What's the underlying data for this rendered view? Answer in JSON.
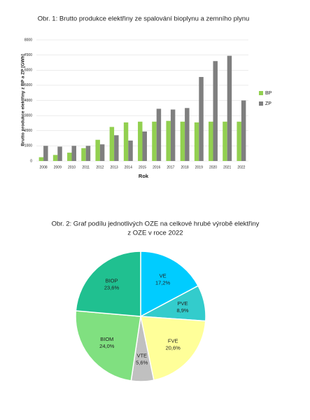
{
  "chart_data": [
    {
      "type": "bar",
      "title": "Obr. 1: Brutto produkce elektřiny ze spalování bioplynu a zemního plynu",
      "y_label": "Brutto produkce elektřiny z BP a ZP [GWh]",
      "x_label": "Rok",
      "categories": [
        "2008",
        "2009",
        "2010",
        "2011",
        "2012",
        "2013",
        "2014",
        "2015",
        "2016",
        "2017",
        "2018",
        "2019",
        "2020",
        "2021",
        "2022"
      ],
      "series": [
        {
          "name": "BP",
          "color": "#92d050",
          "values": [
            250,
            400,
            550,
            850,
            1400,
            2250,
            2550,
            2600,
            2600,
            2650,
            2600,
            2550,
            2600,
            2600,
            2600
          ]
        },
        {
          "name": "ZP",
          "color": "#7f7f7f",
          "values": [
            1000,
            950,
            1000,
            1000,
            1100,
            1700,
            1350,
            1950,
            3450,
            3400,
            3500,
            5550,
            6600,
            6950,
            4000
          ]
        }
      ],
      "ylim": [
        0,
        8000
      ],
      "yticks": [
        0,
        1000,
        2000,
        3000,
        4000,
        5000,
        6000,
        7000,
        8000
      ],
      "grid": true,
      "legend": "right"
    },
    {
      "type": "pie",
      "title": [
        "Obr. 2: Graf podílu jednotlivých OZE na celkové hrubé výrobě elektřiny",
        "z OZE v roce 2022"
      ],
      "categories": [
        "VE",
        "PVE",
        "FVE",
        "VTE",
        "BIOM",
        "BIOP"
      ],
      "values": [
        17.2,
        8.9,
        20.6,
        5.6,
        24.0,
        23.6
      ],
      "value_labels": [
        "17,2%",
        "8,9%",
        "20,6%",
        "5,6%",
        "24,0%",
        "23,6%"
      ],
      "colors": [
        "#00ccff",
        "#33cccc",
        "#ffff99",
        "#c0c0c0",
        "#80e080",
        "#20c090"
      ]
    }
  ]
}
